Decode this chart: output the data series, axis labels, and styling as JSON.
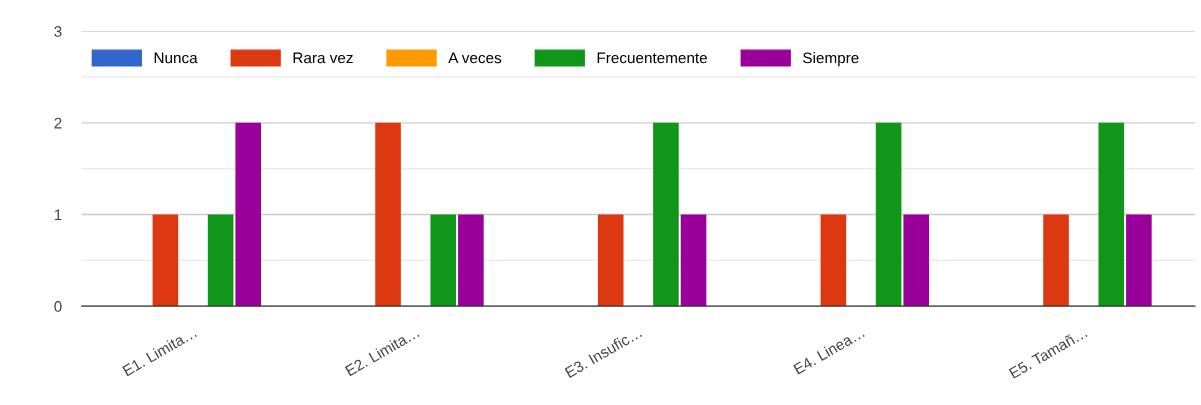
{
  "chart_data": {
    "type": "bar",
    "categories": [
      "E1. Limita…",
      "E2. Limita…",
      "E3. Insufic…",
      "E4. Linea…",
      "E5. Tamañ…"
    ],
    "series": [
      {
        "name": "Nunca",
        "color": "#3366cc",
        "values": [
          0,
          0,
          0,
          0,
          0
        ]
      },
      {
        "name": "Rara vez",
        "color": "#dc3912",
        "values": [
          1,
          2,
          1,
          1,
          1
        ]
      },
      {
        "name": "A veces",
        "color": "#ff9900",
        "values": [
          0,
          0,
          0,
          0,
          0
        ]
      },
      {
        "name": "Frecuentemente",
        "color": "#109618",
        "values": [
          1,
          1,
          2,
          2,
          2
        ]
      },
      {
        "name": "Siempre",
        "color": "#990099",
        "values": [
          2,
          1,
          1,
          1,
          1
        ]
      }
    ],
    "ylim": [
      0,
      3
    ],
    "yticks": [
      0,
      {
        "value": 0.5,
        "label": null
      },
      1,
      {
        "value": 1.5,
        "label": null
      },
      2,
      {
        "value": 2.5,
        "label": null
      },
      3
    ],
    "grid": "y",
    "legend": "top left"
  }
}
